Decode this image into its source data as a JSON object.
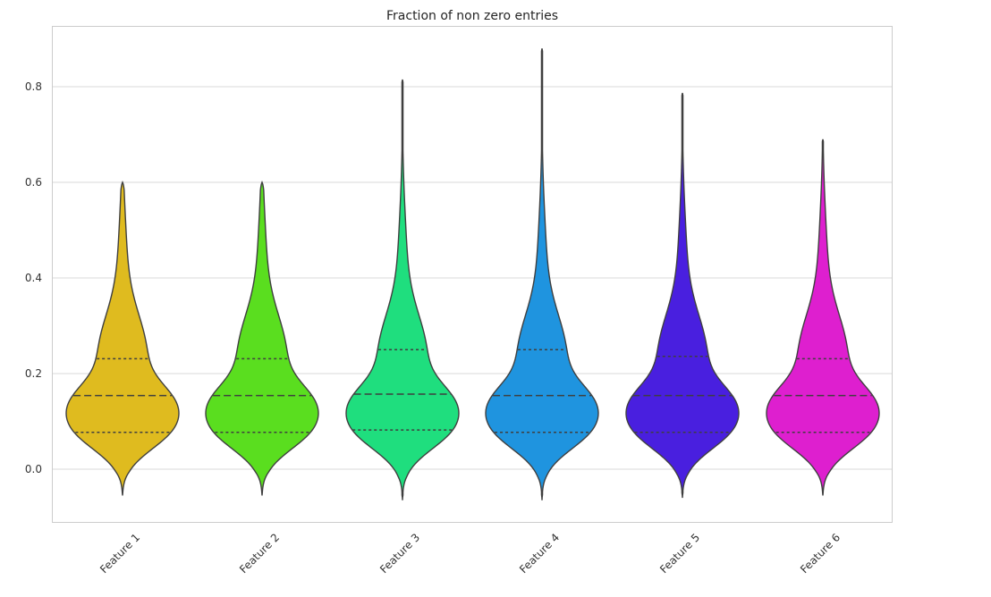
{
  "chart_data": {
    "type": "violin",
    "title": "Fraction of non zero entries",
    "xlabel": "",
    "ylabel": "",
    "ylim": [
      -0.11,
      0.93
    ],
    "yticks": [
      0.0,
      0.2,
      0.4,
      0.6,
      0.8
    ],
    "ytick_labels": [
      "0.0",
      "0.2",
      "0.4",
      "0.6",
      "0.8"
    ],
    "grid": "horizontal",
    "categories": [
      "Feature 1",
      "Feature 2",
      "Feature 3",
      "Feature 4",
      "Feature 5",
      "Feature 6"
    ],
    "violins": [
      {
        "category": "Feature 1",
        "color": "#dfbb1f",
        "min": -0.055,
        "max": 0.6,
        "q1": 0.077,
        "median": 0.154,
        "q3": 0.231
      },
      {
        "category": "Feature 2",
        "color": "#5ade1f",
        "min": -0.055,
        "max": 0.6,
        "q1": 0.077,
        "median": 0.154,
        "q3": 0.231
      },
      {
        "category": "Feature 3",
        "color": "#1fde7e",
        "min": -0.065,
        "max": 0.815,
        "q1": 0.082,
        "median": 0.157,
        "q3": 0.25
      },
      {
        "category": "Feature 4",
        "color": "#1f94df",
        "min": -0.065,
        "max": 0.88,
        "q1": 0.077,
        "median": 0.154,
        "q3": 0.25
      },
      {
        "category": "Feature 5",
        "color": "#491fdf",
        "min": -0.06,
        "max": 0.787,
        "q1": 0.077,
        "median": 0.154,
        "q3": 0.236
      },
      {
        "category": "Feature 6",
        "color": "#de1fcf",
        "min": -0.055,
        "max": 0.69,
        "q1": 0.077,
        "median": 0.154,
        "q3": 0.231
      }
    ]
  }
}
